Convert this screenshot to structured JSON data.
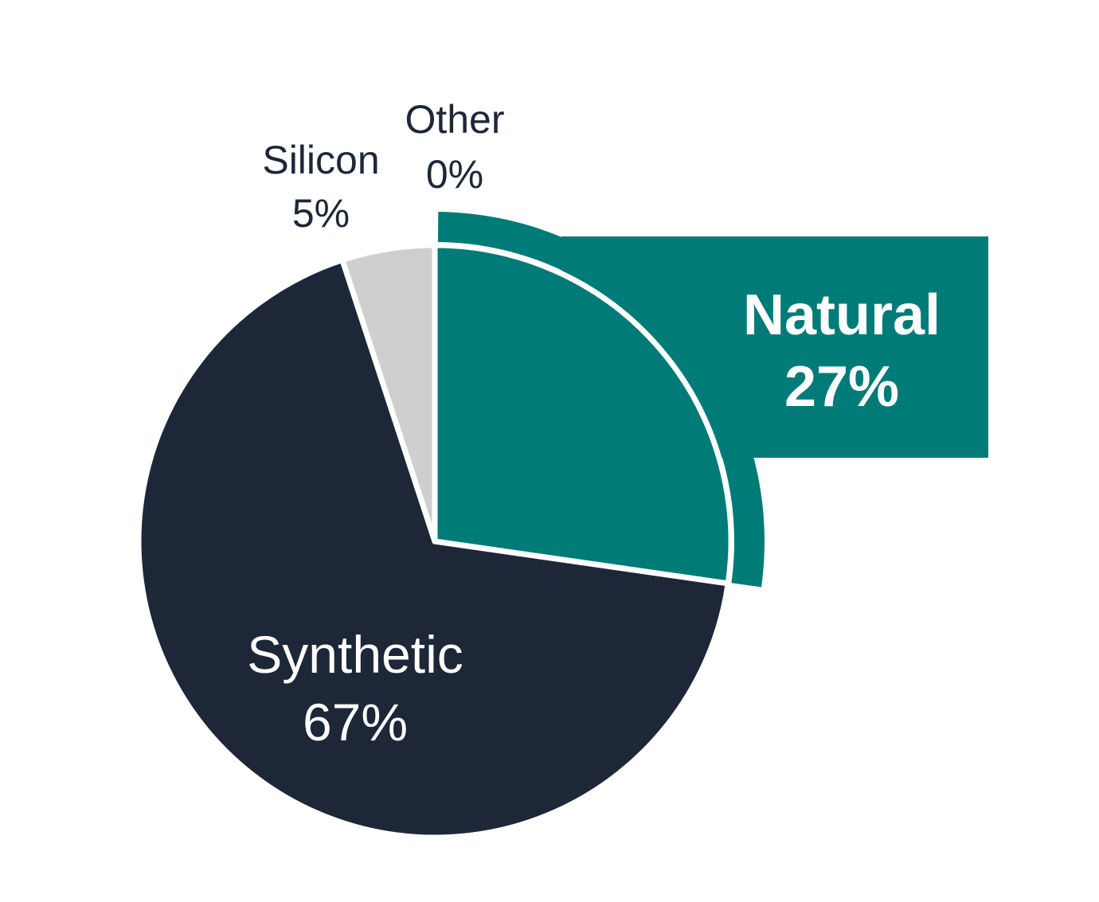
{
  "chart_data": {
    "type": "pie",
    "title": "",
    "slices": [
      {
        "label": "Natural",
        "value": 27,
        "value_label": "27%",
        "color": "#007b78",
        "label_color": "#ffffff",
        "emphasized": true
      },
      {
        "label": "Synthetic",
        "value": 67,
        "value_label": "67%",
        "color": "#1e2738",
        "label_color": "#ffffff",
        "emphasized": false
      },
      {
        "label": "Silicon",
        "value": 5,
        "value_label": "5%",
        "color": "#cfcfcf",
        "label_color": "#1e2738",
        "emphasized": false
      },
      {
        "label": "Other",
        "value": 0,
        "value_label": "0%",
        "color": "#9a9a9a",
        "label_color": "#1e2738",
        "emphasized": false
      }
    ],
    "start": "12 o'clock",
    "direction": "clockwise",
    "callout": {
      "slice": "Natural",
      "style": "highlight-ring-with-box"
    }
  }
}
